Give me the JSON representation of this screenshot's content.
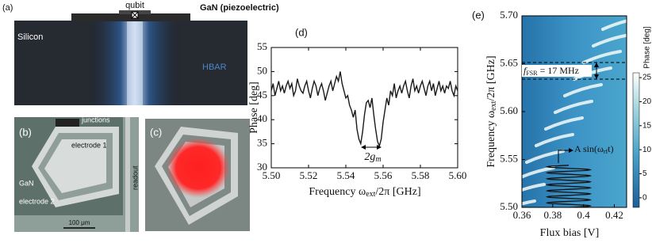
{
  "panels": {
    "a": {
      "label": "(a)",
      "qubit": "qubit",
      "gan": "GaN (piezoelectric)",
      "silicon": "Silicon",
      "hbar": "HBAR"
    },
    "b": {
      "label": "(b)",
      "junctions": "junctions",
      "electrode1": "electrode 1",
      "gan": "GaN",
      "electrode2": "electrode 2",
      "readout": "readout",
      "scale": "100 μm"
    },
    "c": {
      "label": "(c)"
    }
  },
  "chart_data": [
    {
      "type": "line",
      "panel_label": "(d)",
      "x_label": {
        "pre": "Frequency ω",
        "sub": "ext",
        "post": "/2π [GHz]"
      },
      "y_label": "Phase [deg]",
      "annotation": {
        "pre": "2g",
        "sub": "m"
      },
      "xlim": [
        5.5,
        5.6
      ],
      "xticks": [
        {
          "value": 5.5,
          "label": "5.50"
        },
        5.52,
        5.54,
        5.56,
        5.58,
        {
          "value": 5.6,
          "label": "5.60"
        }
      ],
      "ylim": [
        30,
        55
      ],
      "yticks": [
        30,
        35,
        40,
        45,
        50,
        55
      ],
      "series": [
        {
          "color": "#1a1a1a",
          "x": [
            5.5,
            5.501,
            5.502,
            5.503,
            5.504,
            5.505,
            5.506,
            5.507,
            5.508,
            5.509,
            5.51,
            5.511,
            5.512,
            5.513,
            5.514,
            5.515,
            5.516,
            5.517,
            5.518,
            5.519,
            5.52,
            5.521,
            5.522,
            5.523,
            5.524,
            5.525,
            5.526,
            5.527,
            5.528,
            5.529,
            5.53,
            5.531,
            5.532,
            5.533,
            5.534,
            5.535,
            5.536,
            5.537,
            5.538,
            5.539,
            5.54,
            5.541,
            5.542,
            5.543,
            5.544,
            5.545,
            5.546,
            5.547,
            5.548,
            5.549,
            5.55,
            5.551,
            5.552,
            5.553,
            5.554,
            5.555,
            5.556,
            5.557,
            5.558,
            5.559,
            5.56,
            5.561,
            5.562,
            5.563,
            5.564,
            5.565,
            5.566,
            5.567,
            5.568,
            5.569,
            5.57,
            5.571,
            5.572,
            5.573,
            5.574,
            5.575,
            5.576,
            5.577,
            5.578,
            5.579,
            5.58,
            5.581,
            5.582,
            5.583,
            5.584,
            5.585,
            5.586,
            5.587,
            5.588,
            5.589,
            5.59,
            5.591,
            5.592,
            5.593,
            5.594,
            5.595,
            5.596,
            5.597,
            5.598,
            5.599,
            5.6
          ],
          "values": [
            46,
            47.5,
            45,
            46.5,
            48,
            46,
            47,
            45.5,
            47,
            48,
            46.5,
            47.5,
            45,
            46,
            48.5,
            47,
            46,
            45.5,
            47,
            48,
            46,
            44.5,
            46.5,
            48,
            47,
            45,
            46.5,
            47.5,
            46,
            44,
            45.5,
            47,
            48,
            46,
            47.5,
            49,
            48,
            50,
            47.5,
            46,
            44.5,
            45,
            43,
            42,
            40.5,
            42,
            38,
            36,
            35,
            37.5,
            41,
            43.5,
            44,
            42.5,
            44.5,
            41,
            38,
            35.5,
            34.5,
            36,
            39.5,
            42,
            44.5,
            43,
            46,
            45,
            47.5,
            44.5,
            46,
            47,
            45.5,
            47,
            48,
            46,
            44.5,
            47,
            48.5,
            46,
            47,
            45.5,
            47,
            48,
            46.5,
            45,
            47,
            48,
            46,
            47.5,
            45,
            46.5,
            48,
            46,
            47,
            45.5,
            47,
            46.5,
            48,
            46,
            45,
            47,
            46
          ]
        }
      ]
    },
    {
      "type": "heatmap",
      "panel_label": "(e)",
      "x_label": "Flux bias [V]",
      "y_label": {
        "pre": "Frequency ω",
        "sub": "ext",
        "post": "/2π [GHz]"
      },
      "fsr_label": {
        "pre": "f",
        "sub": "FSR",
        "post": " = 17 MHz"
      },
      "drive_label": {
        "pre": "A sin(ω",
        "sub": "rf",
        "post": "t)"
      },
      "colorbar_label": "Phase [deg]",
      "xlim": [
        0.36,
        0.428
      ],
      "xticks": [
        0.36,
        0.38,
        0.4,
        0.42
      ],
      "ylim": [
        5.5,
        5.7
      ],
      "yticks": [
        {
          "value": 5.5,
          "label": "5.50"
        },
        5.55,
        {
          "value": 5.6,
          "label": "5.60"
        },
        5.65,
        {
          "value": 5.7,
          "label": "5.70"
        }
      ],
      "clim": [
        -2,
        26
      ],
      "cticks": [
        0,
        5,
        10,
        15,
        20,
        25
      ]
    }
  ]
}
